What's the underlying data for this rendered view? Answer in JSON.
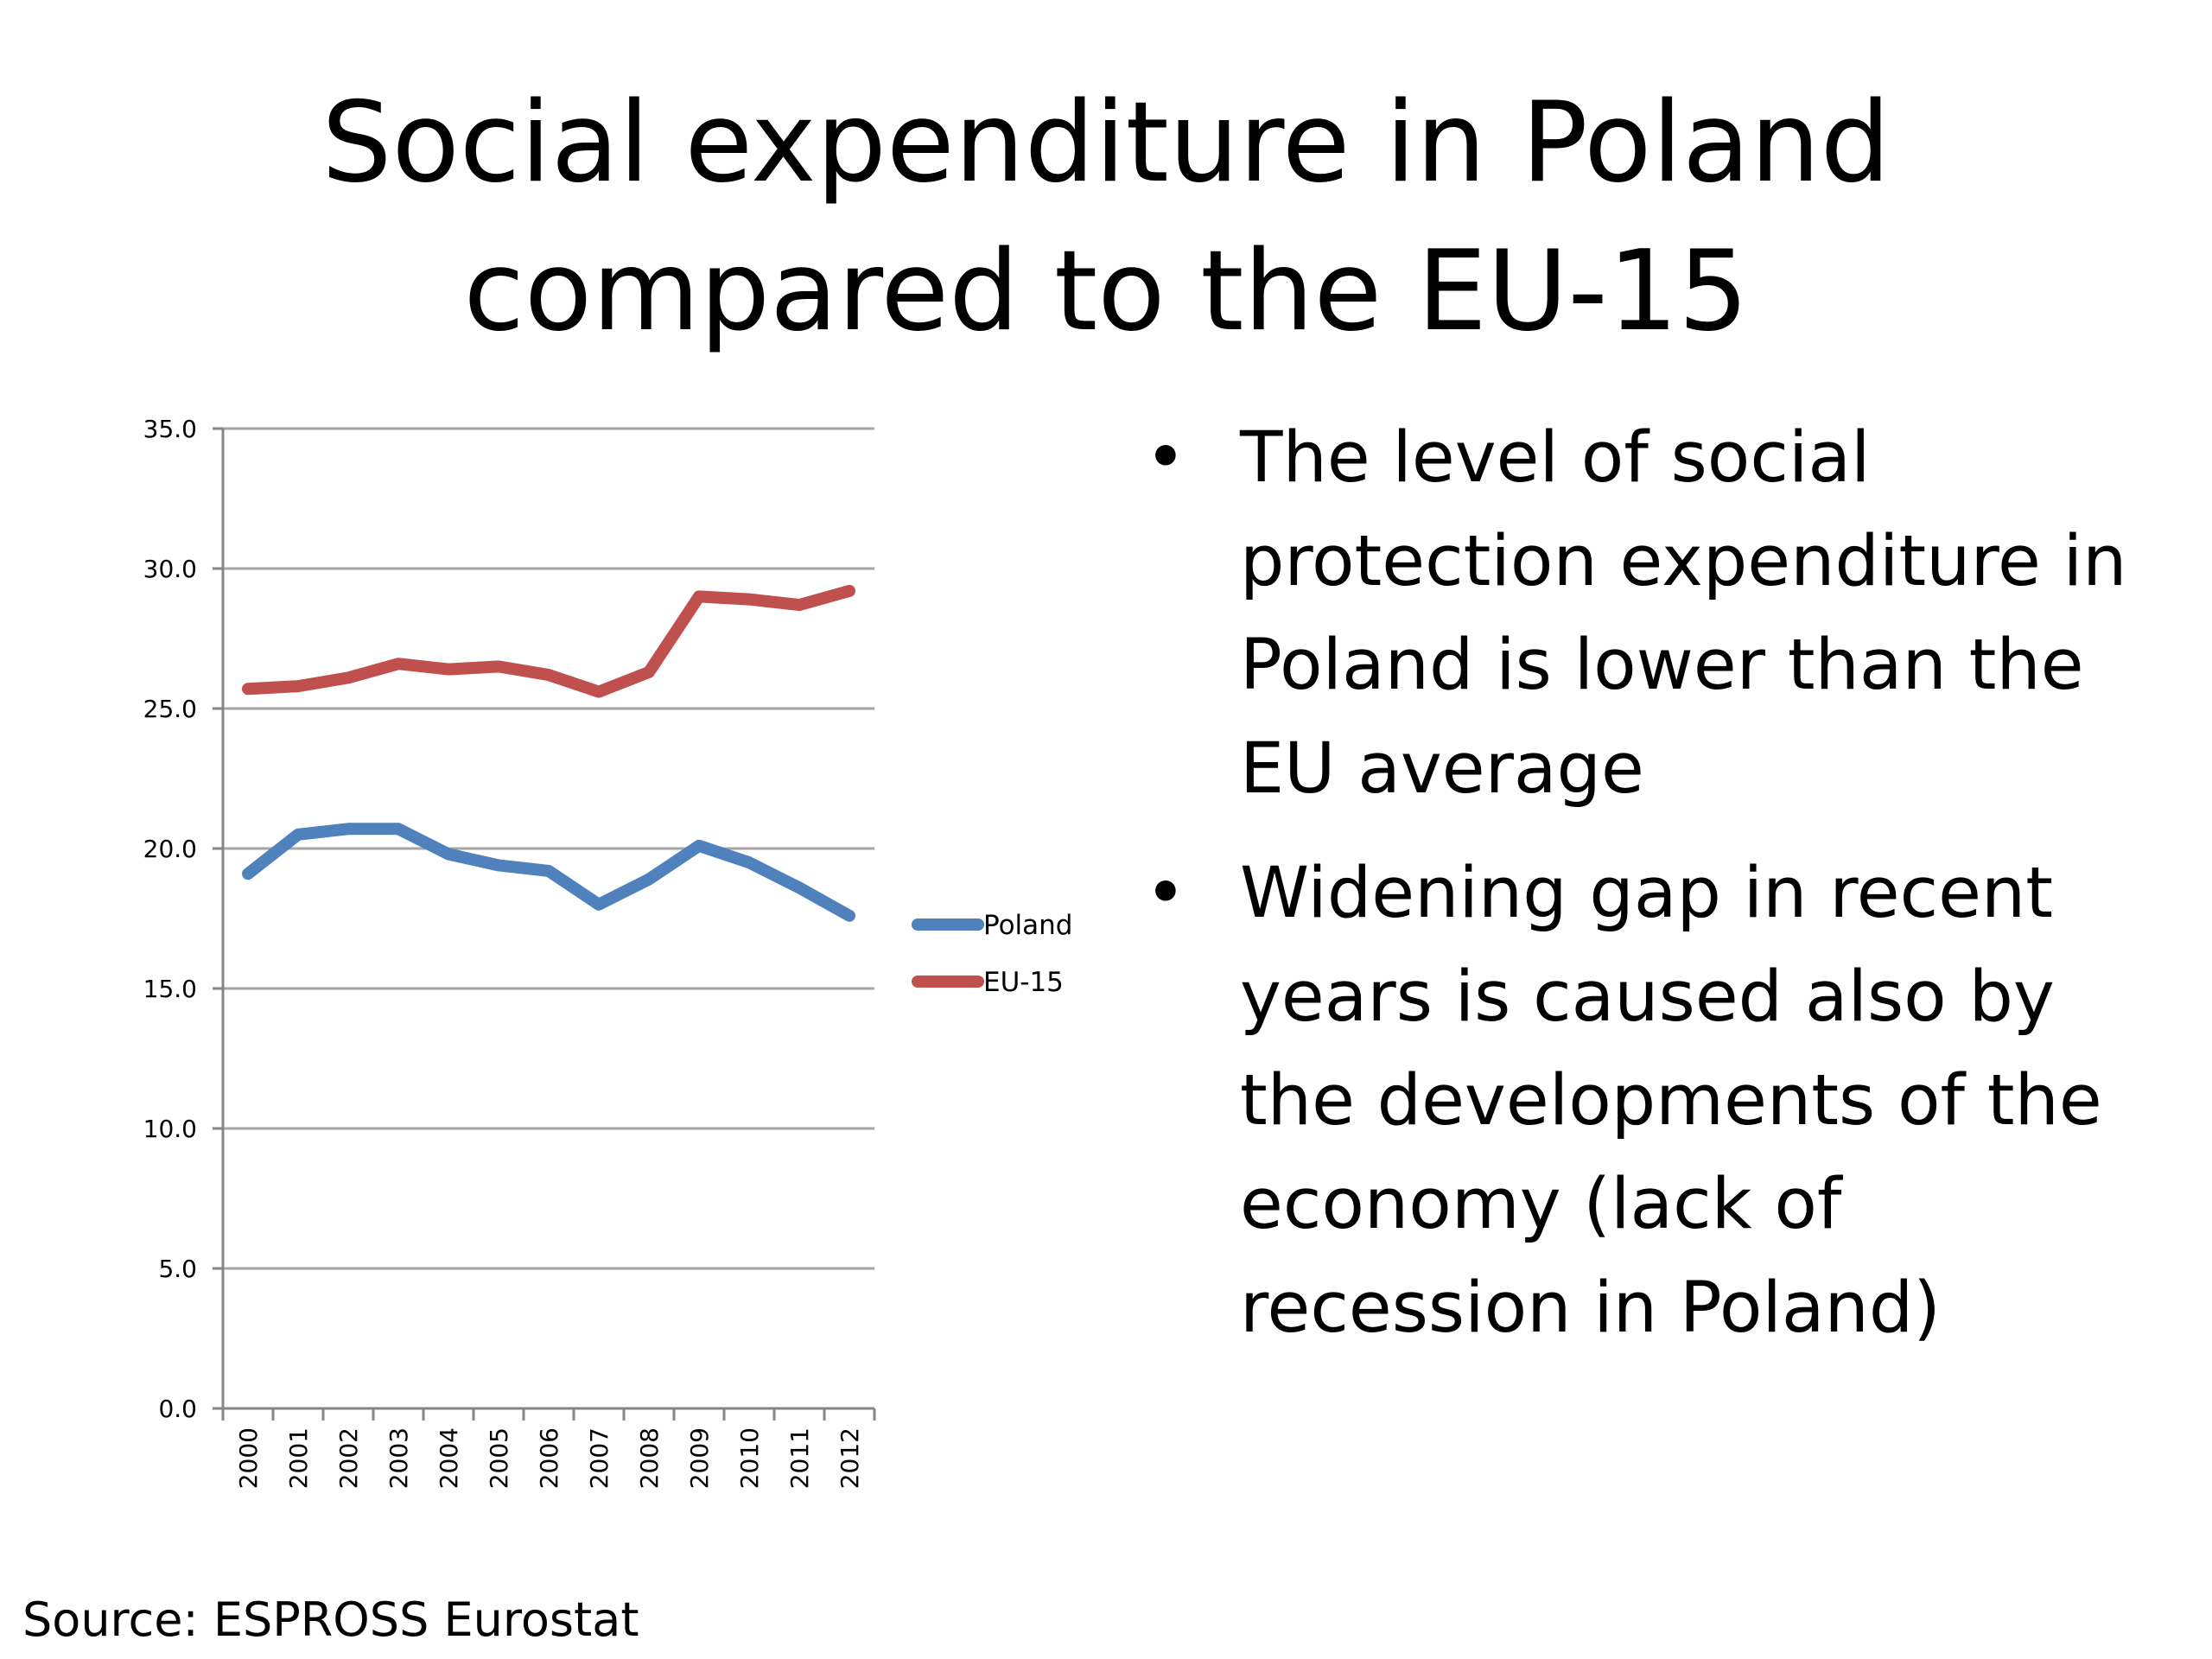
{
  "slide": {
    "title": "Social expenditure in Poland compared to the EU-15",
    "bullets": [
      "The level of social protection expenditure in Poland is lower than the EU average",
      "Widening gap in recent years is caused also by the developments of the economy (lack of recession in Poland)"
    ],
    "bullet_glyph": "•",
    "source": "Source: ESPROSS Eurostat"
  },
  "chart_data": {
    "type": "line",
    "title": "",
    "xlabel": "",
    "ylabel": "",
    "categories": [
      "2000",
      "2001",
      "2002",
      "2003",
      "2004",
      "2005",
      "2006",
      "2007",
      "2008",
      "2009",
      "2010",
      "2011",
      "2012"
    ],
    "series": [
      {
        "name": "Poland",
        "color": "#4f81bd",
        "values": [
          19.1,
          20.5,
          20.7,
          20.7,
          19.8,
          19.4,
          19.2,
          18.0,
          18.9,
          20.1,
          19.5,
          18.6,
          17.6
        ]
      },
      {
        "name": "EU-15",
        "color": "#c0504d",
        "values": [
          25.7,
          25.8,
          26.1,
          26.6,
          26.4,
          26.5,
          26.2,
          25.6,
          26.3,
          29.0,
          28.9,
          28.7,
          29.2
        ]
      }
    ],
    "ylim": [
      0,
      35
    ],
    "yticks": [
      "0.0",
      "5.0",
      "10.0",
      "15.0",
      "20.0",
      "25.0",
      "30.0",
      "35.0"
    ],
    "grid": true,
    "legend_position": "right"
  }
}
